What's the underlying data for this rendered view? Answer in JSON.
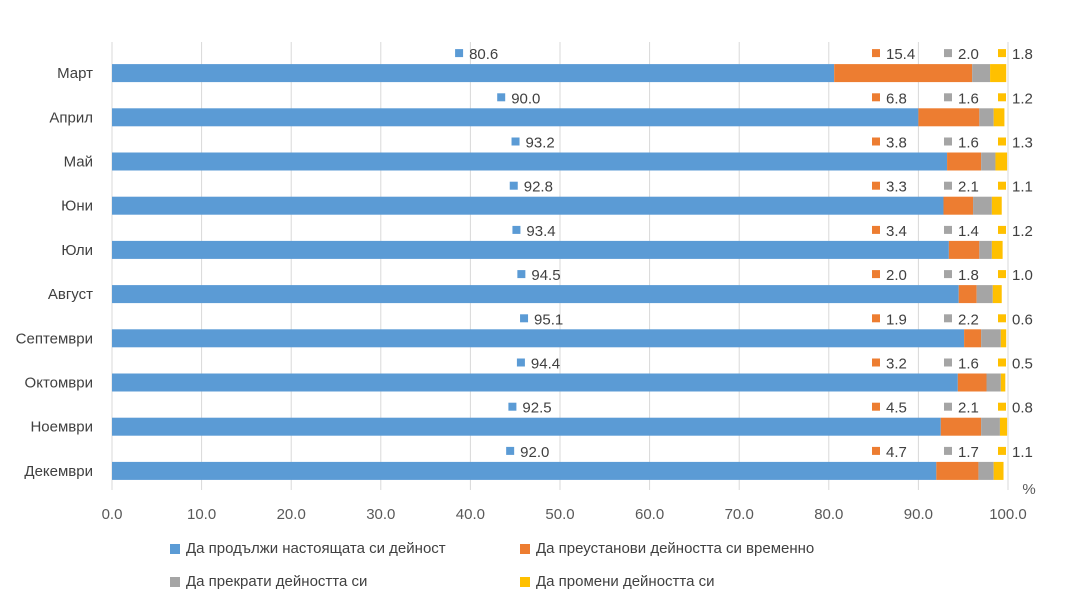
{
  "chart_data": {
    "type": "bar",
    "orientation": "horizontal",
    "stacked": true,
    "unit_label": "%",
    "categories": [
      "Март",
      "Април",
      "Май",
      "Юни",
      "Юли",
      "Август",
      "Септември",
      "Октомври",
      "Ноември",
      "Декември"
    ],
    "series": [
      {
        "name": "Да продължи настоящата си дейност",
        "color": "#5B9BD5",
        "values": [
          80.6,
          90.0,
          93.2,
          92.8,
          93.4,
          94.5,
          95.1,
          94.4,
          92.5,
          92.0
        ]
      },
      {
        "name": "Да преустанови дейността си временно",
        "color": "#ED7D31",
        "values": [
          15.4,
          6.8,
          3.8,
          3.3,
          3.4,
          2.0,
          1.9,
          3.2,
          4.5,
          4.7
        ]
      },
      {
        "name": "Да прекрати дейността си",
        "color": "#A5A5A5",
        "values": [
          2.0,
          1.6,
          1.6,
          2.1,
          1.4,
          1.8,
          2.2,
          1.6,
          2.1,
          1.7
        ]
      },
      {
        "name": "Да промени дейността си",
        "color": "#FFC000",
        "values": [
          1.8,
          1.2,
          1.3,
          1.1,
          1.2,
          1.0,
          0.6,
          0.5,
          0.8,
          1.1
        ]
      }
    ],
    "xlim": [
      0,
      100
    ],
    "xticks": [
      "0.0",
      "10.0",
      "20.0",
      "30.0",
      "40.0",
      "50.0",
      "60.0",
      "70.0",
      "80.0",
      "90.0",
      "100.0"
    ],
    "grid": true,
    "legend_position": "bottom"
  }
}
